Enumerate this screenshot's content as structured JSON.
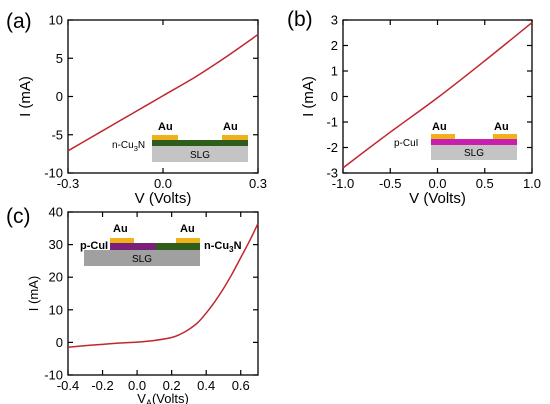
{
  "chart_data": [
    {
      "type": "line",
      "panel_label": "(a)",
      "xlabel": "V (Volts)",
      "ylabel": "I (mA)",
      "xlim": [
        -0.3,
        0.3
      ],
      "ylim": [
        -10,
        10
      ],
      "x_ticks": [
        "-0.3",
        "0.0",
        "0.3"
      ],
      "y_ticks": [
        "-10",
        "-5",
        "0",
        "5",
        "10"
      ],
      "grid": false,
      "series": [
        {
          "color": "#c0272d",
          "x": [
            -0.3,
            -0.2,
            -0.1,
            0.0,
            0.1,
            0.2,
            0.3
          ],
          "y": [
            -7.1,
            -4.7,
            -2.3,
            0.1,
            2.5,
            5.2,
            8.1
          ]
        }
      ],
      "inset": {
        "left_contact": "Au",
        "right_contact": "Au",
        "layer_label": "n-Cu3N",
        "substrate": "SLG",
        "contact_color": "#f0b21a",
        "layer_color": "#2f5e1c",
        "substrate_color": "#c4c4c4",
        "layer_label_color": "#2f5e1c",
        "contact_label_color": "#e0a10a"
      }
    },
    {
      "type": "line",
      "panel_label": "(b)",
      "xlabel": "V (Volts)",
      "ylabel": "I (mA)",
      "xlim": [
        -1.0,
        1.0
      ],
      "ylim": [
        -3,
        3
      ],
      "x_ticks": [
        "-1.0",
        "-0.5",
        "0.0",
        "0.5",
        "1.0"
      ],
      "y_ticks": [
        "-3",
        "-2",
        "-1",
        "0",
        "1",
        "2",
        "3"
      ],
      "grid": false,
      "series": [
        {
          "color": "#c0272d",
          "x": [
            -1.0,
            -0.5,
            0.0,
            0.5,
            1.0
          ],
          "y": [
            -2.8,
            -1.4,
            -0.05,
            1.4,
            2.9
          ]
        }
      ],
      "inset": {
        "left_contact": "Au",
        "right_contact": "Au",
        "layer_label": "p-CuI",
        "substrate": "SLG",
        "contact_color": "#f0b21a",
        "layer_color": "#c71fb0",
        "substrate_color": "#c4c4c4",
        "layer_label_color": "#c71fb0",
        "contact_label_color": "#e0a10a"
      }
    },
    {
      "type": "line",
      "panel_label": "(c)",
      "xlabel": "VA(Volts)",
      "ylabel": "I (mA)",
      "xlim": [
        -0.4,
        0.7
      ],
      "ylim": [
        -10,
        40
      ],
      "x_ticks": [
        "-0.4",
        "-0.2",
        "0.0",
        "0.2",
        "0.4",
        "0.6"
      ],
      "y_ticks": [
        "-10",
        "0",
        "10",
        "20",
        "30",
        "40"
      ],
      "grid": false,
      "series": [
        {
          "color": "#c0272d",
          "x": [
            -0.4,
            -0.3,
            -0.2,
            -0.1,
            0.0,
            0.1,
            0.2,
            0.25,
            0.3,
            0.35,
            0.4,
            0.45,
            0.5,
            0.55,
            0.6,
            0.65,
            0.7
          ],
          "y": [
            -1.5,
            -1.0,
            -0.6,
            -0.2,
            0.1,
            0.6,
            1.5,
            2.5,
            4.0,
            6.0,
            9.0,
            12.5,
            16.5,
            21.0,
            26.0,
            31.0,
            36.5
          ]
        }
      ],
      "inset": {
        "left_contact": "Au",
        "right_contact": "Au",
        "left_label": "p-CuI",
        "right_label": "n-Cu3N",
        "substrate": "SLG",
        "contact_color": "#f0b21a",
        "left_layer_color": "#7a1f7a",
        "right_layer_color": "#2f5e1c",
        "substrate_color": "#a0a0a0",
        "left_label_color": "#7a1f7a",
        "right_label_color": "#2f5e1c",
        "contact_label_color": "#e0a10a"
      }
    }
  ]
}
